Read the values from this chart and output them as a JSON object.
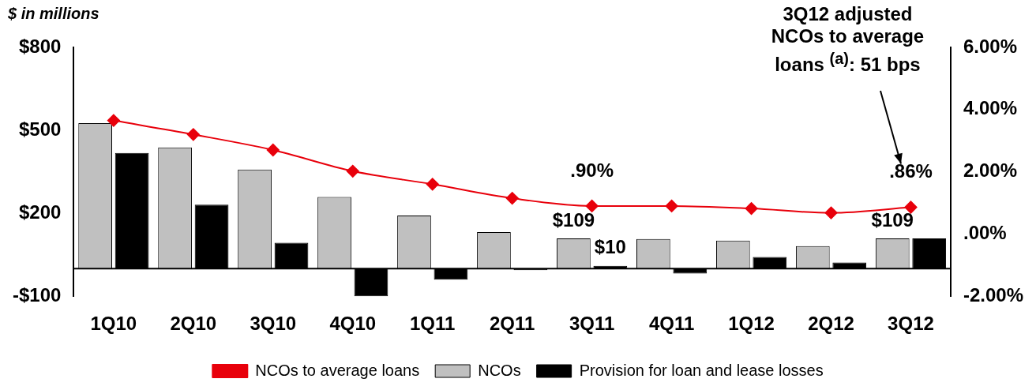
{
  "chart_data": {
    "type": "bar",
    "ylabel": "$ in millions",
    "categories": [
      "1Q10",
      "2Q10",
      "3Q10",
      "4Q10",
      "1Q11",
      "2Q11",
      "3Q11",
      "4Q11",
      "1Q12",
      "2Q12",
      "3Q12"
    ],
    "series": [
      {
        "name": "NCOs",
        "color": "#c0c0c0",
        "values": [
          526,
          438,
          358,
          259,
          192,
          132,
          109,
          107,
          101,
          81,
          109
        ],
        "value_labels": [
          null,
          null,
          null,
          null,
          null,
          null,
          "$109",
          null,
          null,
          null,
          "$109"
        ]
      },
      {
        "name": "Provision for loan and lease losses",
        "color": "#000000",
        "values": [
          418,
          231,
          93,
          -100,
          -40,
          -6,
          10,
          -18,
          42,
          22,
          109
        ],
        "value_labels": [
          null,
          null,
          null,
          null,
          null,
          null,
          "$10",
          null,
          null,
          null,
          null
        ]
      },
      {
        "name": "NCOs to average loans",
        "type": "line",
        "axis": "y2",
        "color": "#e8000b",
        "marker": "diamond",
        "values": [
          3.65,
          3.2,
          2.7,
          2.02,
          1.6,
          1.15,
          0.9,
          0.9,
          0.82,
          0.68,
          0.86
        ],
        "value_labels": [
          null,
          null,
          null,
          null,
          null,
          null,
          ".90%",
          null,
          null,
          null,
          ".86%"
        ]
      }
    ],
    "ylim": [
      -100,
      800
    ],
    "yticks": [
      {
        "value": -100,
        "label": "-$100"
      },
      {
        "value": 200,
        "label": "$200"
      },
      {
        "value": 500,
        "label": "$500"
      },
      {
        "value": 800,
        "label": "$800"
      }
    ],
    "y2lim": [
      -2,
      6
    ],
    "y2ticks": [
      {
        "value": -2,
        "label": "-2.00%"
      },
      {
        "value": 0,
        "label": ".00%"
      },
      {
        "value": 2,
        "label": "2.00%"
      },
      {
        "value": 4,
        "label": "4.00%"
      },
      {
        "value": 6,
        "label": "6.00%"
      }
    ],
    "annotations": [
      "3Q12 adjusted NCOs to average loans $^{(a)}$: 51 bps"
    ],
    "grid": false,
    "legend": "bottom"
  }
}
